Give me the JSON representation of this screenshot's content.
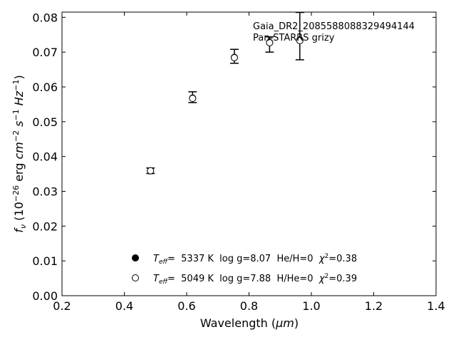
{
  "chart_data": {
    "type": "scatter",
    "xlabel_prefix": "Wavelength (",
    "xlabel_unit": "μm",
    "xlabel_suffix": ")",
    "ylabel_lead": "f",
    "ylabel_sub": "ν",
    "ylabel_rest_a": " (10",
    "ylabel_exp_a": "−26",
    "ylabel_rest_b": " erg ",
    "ylabel_cm": "cm",
    "ylabel_exp_b": "−2",
    "ylabel_s": " s",
    "ylabel_exp_c": "−1",
    "ylabel_hz": " Hz",
    "ylabel_exp_d": "−1",
    "ylabel_close": ")",
    "xlim": [
      0.2,
      1.4
    ],
    "ylim": [
      0.0,
      0.0815
    ],
    "xticks": [
      0.2,
      0.4,
      0.6,
      0.8,
      1.0,
      1.2,
      1.4
    ],
    "xtick_labels": [
      "0.2",
      "0.4",
      "0.6",
      "0.8",
      "1.0",
      "1.2",
      "1.4"
    ],
    "yticks": [
      0.0,
      0.01,
      0.02,
      0.03,
      0.04,
      0.05,
      0.06,
      0.07,
      0.08
    ],
    "ytick_labels": [
      "0.00",
      "0.01",
      "0.02",
      "0.03",
      "0.04",
      "0.05",
      "0.06",
      "0.07",
      "0.08"
    ],
    "grid": false,
    "annotation_lines": [
      "Gaia_DR2_2085588088329494144",
      "Pan-STARRS grizy"
    ],
    "observed": {
      "x": [
        0.484,
        0.619,
        0.753,
        0.866,
        0.963
      ],
      "y": [
        0.0359,
        0.0568,
        0.0688,
        0.0737,
        0.0738
      ],
      "yerr_low": [
        0.0008,
        0.0013,
        0.002,
        0.0037,
        0.006
      ],
      "yerr_high": [
        0.0008,
        0.0018,
        0.002,
        0.0007,
        0.0076
      ]
    },
    "series": [
      {
        "marker": "filled",
        "teff_label": "T",
        "teff_sub": "eff",
        "text_a": "=  5337 K  log g=8.07  He/H=0  ",
        "chi_label": "χ",
        "chi_exp": "2",
        "text_b": "=0.38",
        "x": [
          0.484,
          0.619,
          0.753,
          0.866,
          0.963
        ],
        "y": [
          0.0359,
          0.0568,
          0.0685,
          0.0728,
          0.0735
        ]
      },
      {
        "marker": "open",
        "teff_label": "T",
        "teff_sub": "eff",
        "text_a": "=  5049 K  log g=7.88  H/He=0  ",
        "chi_label": "χ",
        "chi_exp": "2",
        "text_b": "=0.39",
        "x": [
          0.484,
          0.619,
          0.753,
          0.866,
          0.963
        ],
        "y": [
          0.0359,
          0.0567,
          0.0684,
          0.0727,
          0.0733
        ]
      }
    ],
    "colors": {
      "axis": "#000000",
      "marker": "#000000",
      "background": "#ffffff"
    }
  }
}
